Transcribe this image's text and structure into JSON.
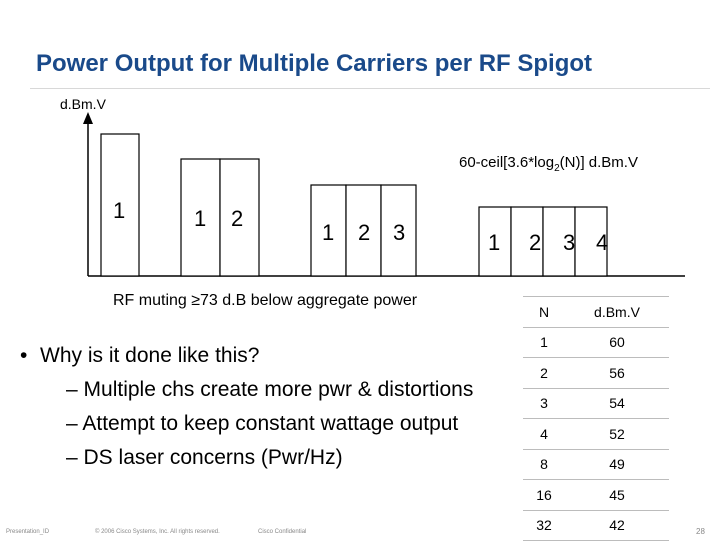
{
  "slide": {
    "title": "Power Output for Multiple Carriers per RF Spigot",
    "y_axis_label": "d.Bm.V",
    "formula": {
      "prefix": "60-ceil[3.6*log",
      "sub": "2",
      "suffix": "(N)] d.Bm.V"
    },
    "carrier_groups": [
      {
        "labels": [
          "1"
        ]
      },
      {
        "labels": [
          "1",
          "2"
        ]
      },
      {
        "labels": [
          "1",
          "2",
          "3"
        ]
      },
      {
        "labels": [
          "1",
          "2",
          "3",
          "4"
        ]
      }
    ],
    "muting_note": "RF muting ≥73 d.B below aggregate power",
    "bullets": {
      "main": "Why is it done like this?",
      "subs": [
        "Multiple chs create more pwr & distortions",
        "Attempt to keep constant wattage output",
        "DS laser concerns (Pwr/Hz)"
      ]
    },
    "table": {
      "headers": [
        "N",
        "d.Bm.V"
      ],
      "rows": [
        [
          "1",
          "60"
        ],
        [
          "2",
          "56"
        ],
        [
          "3",
          "54"
        ],
        [
          "4",
          "52"
        ],
        [
          "8",
          "49"
        ],
        [
          "16",
          "45"
        ],
        [
          "32",
          "42"
        ]
      ]
    },
    "footer": {
      "left": "Presentation_ID",
      "copyright": "© 2006 Cisco Systems, Inc. All rights reserved.",
      "confidential": "Cisco Confidential",
      "page": "28"
    }
  }
}
